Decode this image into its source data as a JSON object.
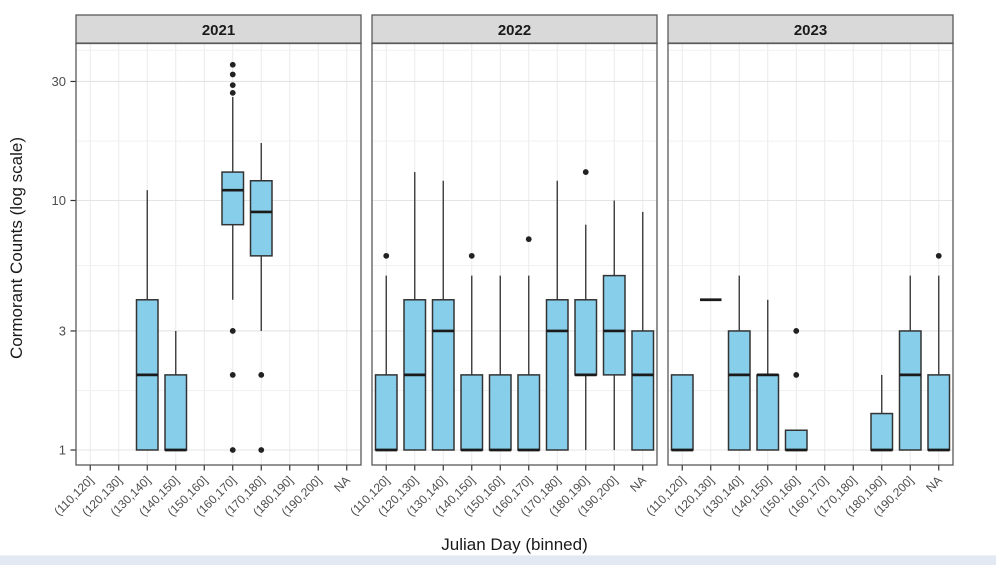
{
  "page": {
    "background": "#ffffff",
    "footer_bar_color": "#e2e9f2"
  },
  "chart_data": {
    "type": "boxplot",
    "title": "",
    "xlabel": "Julian Day (binned)",
    "ylabel": "Cormorant Counts (log scale)",
    "y_scale": "log10",
    "y_ticks": [
      30,
      10,
      3,
      1
    ],
    "y_minor_gridlines": [
      1.73,
      5.48,
      17.3,
      40
    ],
    "ylim": [
      0.87,
      42.5
    ],
    "grid": true,
    "legend": "none",
    "categories": [
      "(110,120]",
      "(120,130]",
      "(130,140]",
      "(140,150]",
      "(150,160]",
      "(160,170]",
      "(170,180]",
      "(180,190]",
      "(190,200]",
      "NA"
    ],
    "facets": [
      {
        "label": "2021",
        "boxes": [
          {
            "category": "(130,140]",
            "index": 2,
            "q1": 1,
            "median": 2,
            "q3": 4,
            "whisker_low": 1,
            "whisker_high": 11,
            "outliers": []
          },
          {
            "category": "(140,150]",
            "index": 3,
            "q1": 1,
            "median": 1,
            "q3": 2,
            "whisker_low": 1,
            "whisker_high": 3,
            "outliers": []
          },
          {
            "category": "(160,170]",
            "index": 5,
            "q1": 8,
            "median": 11,
            "q3": 13,
            "whisker_low": 4,
            "whisker_high": 26,
            "outliers": [
              1,
              2,
              3,
              27,
              29,
              32,
              35
            ]
          },
          {
            "category": "(170,180]",
            "index": 6,
            "q1": 6,
            "median": 9,
            "q3": 12,
            "whisker_low": 3,
            "whisker_high": 17,
            "outliers": [
              1,
              2
            ]
          }
        ]
      },
      {
        "label": "2022",
        "boxes": [
          {
            "category": "(110,120]",
            "index": 0,
            "q1": 1,
            "median": 1,
            "q3": 2,
            "whisker_low": 1,
            "whisker_high": 5,
            "outliers": [
              6
            ]
          },
          {
            "category": "(120,130]",
            "index": 1,
            "q1": 1,
            "median": 2,
            "q3": 4,
            "whisker_low": 1,
            "whisker_high": 13,
            "outliers": []
          },
          {
            "category": "(130,140]",
            "index": 2,
            "q1": 1,
            "median": 3,
            "q3": 4,
            "whisker_low": 1,
            "whisker_high": 12,
            "outliers": []
          },
          {
            "category": "(140,150]",
            "index": 3,
            "q1": 1,
            "median": 1,
            "q3": 2,
            "whisker_low": 1,
            "whisker_high": 5,
            "outliers": [
              6
            ]
          },
          {
            "category": "(150,160]",
            "index": 4,
            "q1": 1,
            "median": 1,
            "q3": 2,
            "whisker_low": 1,
            "whisker_high": 5,
            "outliers": []
          },
          {
            "category": "(160,170]",
            "index": 5,
            "q1": 1,
            "median": 1,
            "q3": 2,
            "whisker_low": 1,
            "whisker_high": 5,
            "outliers": [
              7
            ]
          },
          {
            "category": "(170,180]",
            "index": 6,
            "q1": 1,
            "median": 3,
            "q3": 4,
            "whisker_low": 1,
            "whisker_high": 12,
            "outliers": []
          },
          {
            "category": "(180,190]",
            "index": 7,
            "q1": 2,
            "median": 2,
            "q3": 4,
            "whisker_low": 1,
            "whisker_high": 8,
            "outliers": [
              13
            ]
          },
          {
            "category": "(190,200]",
            "index": 8,
            "q1": 2,
            "median": 3,
            "q3": 5,
            "whisker_low": 1,
            "whisker_high": 10,
            "outliers": []
          },
          {
            "category": "NA",
            "index": 9,
            "q1": 1,
            "median": 2,
            "q3": 3,
            "whisker_low": 1,
            "whisker_high": 9,
            "outliers": []
          }
        ]
      },
      {
        "label": "2023",
        "boxes": [
          {
            "category": "(110,120]",
            "index": 0,
            "q1": 1,
            "median": 1,
            "q3": 2,
            "whisker_low": 1,
            "whisker_high": 2,
            "outliers": []
          },
          {
            "category": "(120,130]",
            "index": 1,
            "q1": 4,
            "median": 4,
            "q3": 4,
            "whisker_low": 4,
            "whisker_high": 4,
            "outliers": []
          },
          {
            "category": "(130,140]",
            "index": 2,
            "q1": 1,
            "median": 2,
            "q3": 3,
            "whisker_low": 1,
            "whisker_high": 5,
            "outliers": []
          },
          {
            "category": "(140,150]",
            "index": 3,
            "q1": 1,
            "median": 2,
            "q3": 2,
            "whisker_low": 1,
            "whisker_high": 4,
            "outliers": []
          },
          {
            "category": "(150,160]",
            "index": 4,
            "q1": 1,
            "median": 1,
            "q3": 1.2,
            "whisker_low": 1,
            "whisker_high": 1.2,
            "outliers": [
              2,
              3
            ]
          },
          {
            "category": "(180,190]",
            "index": 7,
            "q1": 1,
            "median": 1,
            "q3": 1.4,
            "whisker_low": 1,
            "whisker_high": 2,
            "outliers": []
          },
          {
            "category": "(190,200]",
            "index": 8,
            "q1": 1,
            "median": 2,
            "q3": 3,
            "whisker_low": 1,
            "whisker_high": 5,
            "outliers": []
          },
          {
            "category": "NA",
            "index": 9,
            "q1": 1,
            "median": 1,
            "q3": 2,
            "whisker_low": 1,
            "whisker_high": 5,
            "outliers": [
              6
            ]
          }
        ]
      }
    ],
    "style": {
      "box_fill": "#87CEEB",
      "box_stroke": "#333333",
      "whisker_color": "#3a3a3a",
      "median_color": "#1a1a1a",
      "outlier_color": "#222222",
      "strip_fill": "#d9d9d9",
      "strip_text_color": "#1a1a1a",
      "panel_bg": "#ffffff",
      "panel_border": "#595959",
      "grid_major": "#e4e4e4",
      "grid_minor": "#f1f1f1",
      "grid_vertical": "#eaeaea",
      "axis_text_color": "#4d4d4d",
      "tick_mark_color": "#333333"
    }
  }
}
